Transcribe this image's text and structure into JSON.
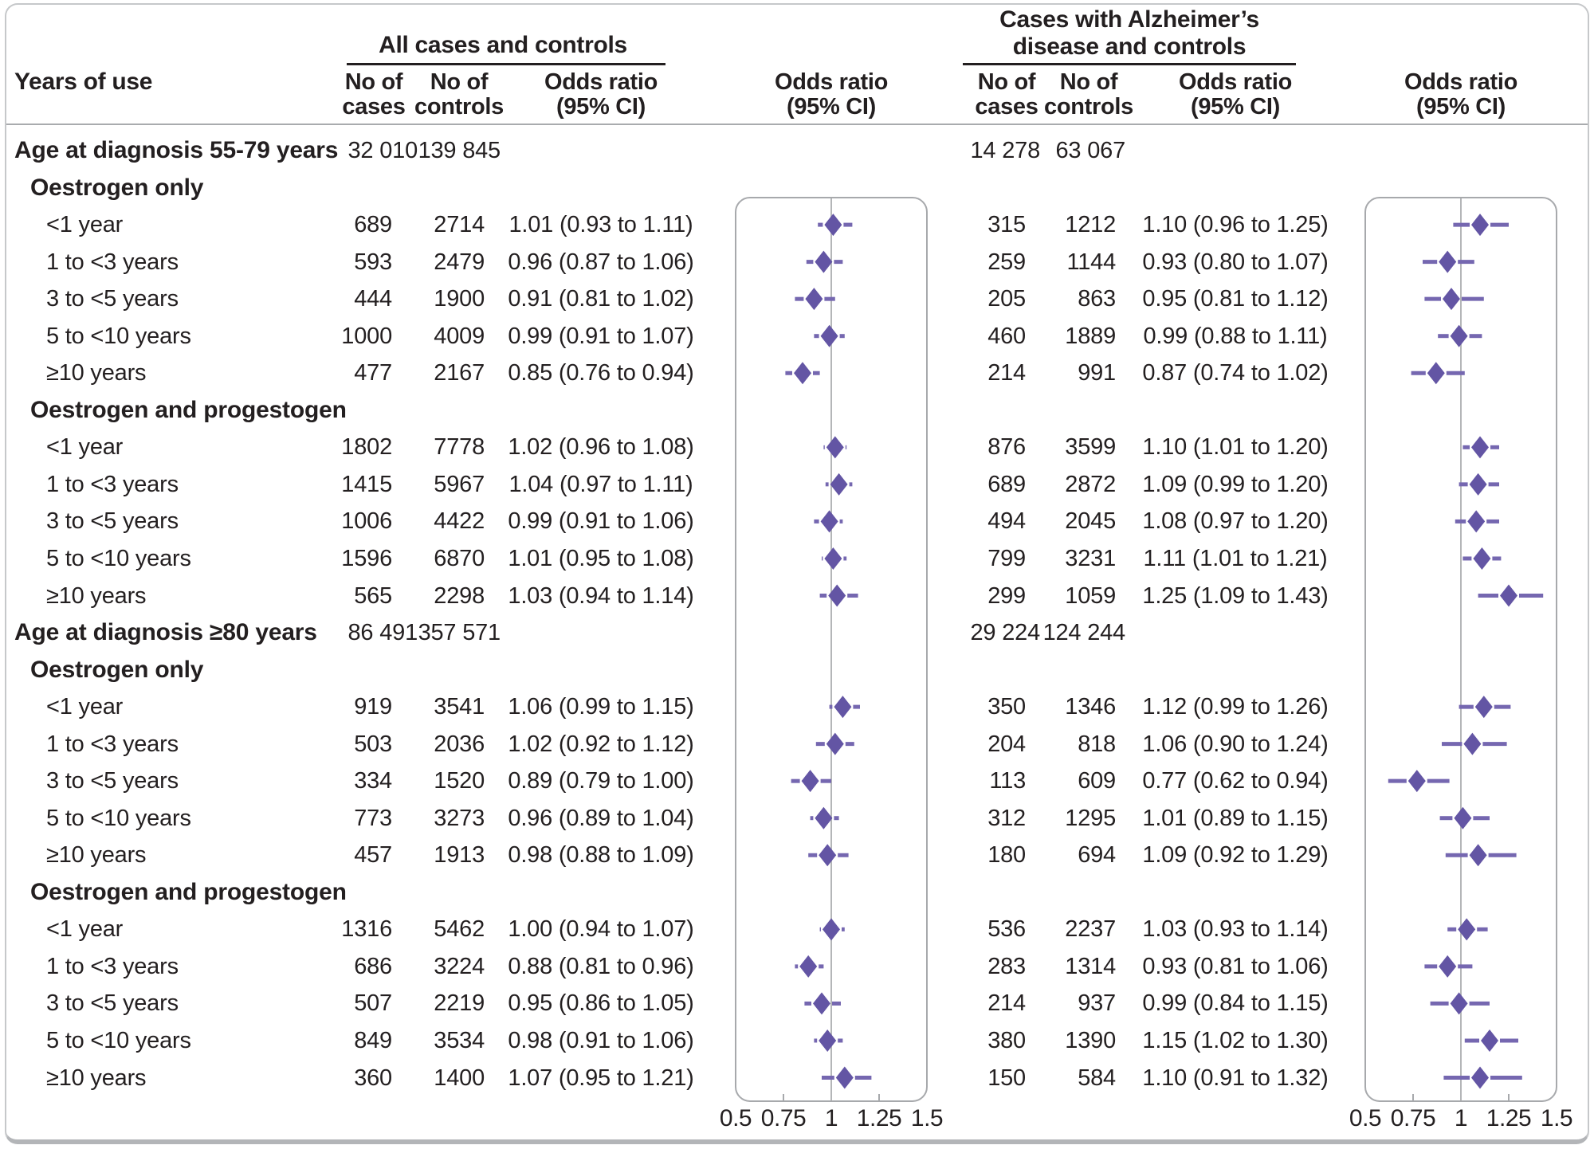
{
  "header": {
    "years_of_use": "Years of use",
    "all_panel_title": "All cases and controls",
    "alz_panel_title_line1": "Cases with Alzheimer’s",
    "alz_panel_title_line2": "disease and controls",
    "no_of": "No of",
    "cases": "cases",
    "controls": "controls",
    "odds_ratio_line1": "Odds ratio",
    "odds_ratio_line2": "(95% CI)"
  },
  "colors": {
    "diamond": "#6355a4",
    "ci_line": "#7567b0",
    "frame": "#a7a9ac",
    "reference_line": "#b4b6b8",
    "text": "#231f20",
    "divider": "#a9abae"
  },
  "chart_data": {
    "type": "forest_plot",
    "panels": [
      "All cases and controls",
      "Cases with Alzheimer’s disease and controls"
    ],
    "axis": {
      "min": 0.5,
      "max": 1.5,
      "reference": 1,
      "ticks": [
        "0.5",
        "0.75",
        "1",
        "1.25",
        "1.5"
      ],
      "tick_values": [
        0.5,
        0.75,
        1,
        1.25,
        1.5
      ]
    },
    "rows": [
      {
        "type": "group",
        "label": "Age at diagnosis 55-79 years",
        "all": {
          "cases": "32 010",
          "controls": "139 845"
        },
        "alz": {
          "cases": "14 278",
          "controls": "63 067"
        }
      },
      {
        "type": "subgroup",
        "label": "Oestrogen only"
      },
      {
        "type": "item",
        "label": "<1 year",
        "all": {
          "cases": "689",
          "controls": "2714",
          "or": 1.01,
          "lo": 0.93,
          "hi": 1.11,
          "text": "1.01 (0.93 to 1.11)"
        },
        "alz": {
          "cases": "315",
          "controls": "1212",
          "or": 1.1,
          "lo": 0.96,
          "hi": 1.25,
          "text": "1.10 (0.96 to 1.25)"
        }
      },
      {
        "type": "item",
        "label": "1 to <3 years",
        "all": {
          "cases": "593",
          "controls": "2479",
          "or": 0.96,
          "lo": 0.87,
          "hi": 1.06,
          "text": "0.96 (0.87 to 1.06)"
        },
        "alz": {
          "cases": "259",
          "controls": "1144",
          "or": 0.93,
          "lo": 0.8,
          "hi": 1.07,
          "text": "0.93 (0.80 to 1.07)"
        }
      },
      {
        "type": "item",
        "label": "3 to <5 years",
        "all": {
          "cases": "444",
          "controls": "1900",
          "or": 0.91,
          "lo": 0.81,
          "hi": 1.02,
          "text": "0.91 (0.81 to 1.02)"
        },
        "alz": {
          "cases": "205",
          "controls": "863",
          "or": 0.95,
          "lo": 0.81,
          "hi": 1.12,
          "text": "0.95 (0.81 to 1.12)"
        }
      },
      {
        "type": "item",
        "label": "5 to <10 years",
        "all": {
          "cases": "1000",
          "controls": "4009",
          "or": 0.99,
          "lo": 0.91,
          "hi": 1.07,
          "text": "0.99 (0.91 to 1.07)"
        },
        "alz": {
          "cases": "460",
          "controls": "1889",
          "or": 0.99,
          "lo": 0.88,
          "hi": 1.11,
          "text": "0.99 (0.88 to 1.11)"
        }
      },
      {
        "type": "item",
        "label": "≥10 years",
        "all": {
          "cases": "477",
          "controls": "2167",
          "or": 0.85,
          "lo": 0.76,
          "hi": 0.94,
          "text": "0.85 (0.76 to 0.94)"
        },
        "alz": {
          "cases": "214",
          "controls": "991",
          "or": 0.87,
          "lo": 0.74,
          "hi": 1.02,
          "text": "0.87 (0.74 to 1.02)"
        }
      },
      {
        "type": "subgroup",
        "label": "Oestrogen and progestogen"
      },
      {
        "type": "item",
        "label": "<1 year",
        "all": {
          "cases": "1802",
          "controls": "7778",
          "or": 1.02,
          "lo": 0.96,
          "hi": 1.08,
          "text": "1.02 (0.96 to 1.08)"
        },
        "alz": {
          "cases": "876",
          "controls": "3599",
          "or": 1.1,
          "lo": 1.01,
          "hi": 1.2,
          "text": "1.10 (1.01 to 1.20)"
        }
      },
      {
        "type": "item",
        "label": "1 to <3 years",
        "all": {
          "cases": "1415",
          "controls": "5967",
          "or": 1.04,
          "lo": 0.97,
          "hi": 1.11,
          "text": "1.04 (0.97 to 1.11)"
        },
        "alz": {
          "cases": "689",
          "controls": "2872",
          "or": 1.09,
          "lo": 0.99,
          "hi": 1.2,
          "text": "1.09 (0.99 to 1.20)"
        }
      },
      {
        "type": "item",
        "label": "3 to <5 years",
        "all": {
          "cases": "1006",
          "controls": "4422",
          "or": 0.99,
          "lo": 0.91,
          "hi": 1.06,
          "text": "0.99 (0.91 to 1.06)"
        },
        "alz": {
          "cases": "494",
          "controls": "2045",
          "or": 1.08,
          "lo": 0.97,
          "hi": 1.2,
          "text": "1.08 (0.97 to 1.20)"
        }
      },
      {
        "type": "item",
        "label": "5 to <10 years",
        "all": {
          "cases": "1596",
          "controls": "6870",
          "or": 1.01,
          "lo": 0.95,
          "hi": 1.08,
          "text": "1.01 (0.95 to 1.08)"
        },
        "alz": {
          "cases": "799",
          "controls": "3231",
          "or": 1.11,
          "lo": 1.01,
          "hi": 1.21,
          "text": "1.11 (1.01 to 1.21)"
        }
      },
      {
        "type": "item",
        "label": "≥10 years",
        "all": {
          "cases": "565",
          "controls": "2298",
          "or": 1.03,
          "lo": 0.94,
          "hi": 1.14,
          "text": "1.03 (0.94 to 1.14)"
        },
        "alz": {
          "cases": "299",
          "controls": "1059",
          "or": 1.25,
          "lo": 1.09,
          "hi": 1.43,
          "text": "1.25 (1.09 to 1.43)"
        }
      },
      {
        "type": "group",
        "label": "Age at diagnosis ≥80 years",
        "all": {
          "cases": "86 491",
          "controls": "357 571"
        },
        "alz": {
          "cases": "29 224",
          "controls": "124 244"
        }
      },
      {
        "type": "subgroup",
        "label": "Oestrogen only"
      },
      {
        "type": "item",
        "label": "<1 year",
        "all": {
          "cases": "919",
          "controls": "3541",
          "or": 1.06,
          "lo": 0.99,
          "hi": 1.15,
          "text": "1.06 (0.99 to 1.15)"
        },
        "alz": {
          "cases": "350",
          "controls": "1346",
          "or": 1.12,
          "lo": 0.99,
          "hi": 1.26,
          "text": "1.12 (0.99 to 1.26)"
        }
      },
      {
        "type": "item",
        "label": "1 to <3 years",
        "all": {
          "cases": "503",
          "controls": "2036",
          "or": 1.02,
          "lo": 0.92,
          "hi": 1.12,
          "text": "1.02 (0.92 to 1.12)"
        },
        "alz": {
          "cases": "204",
          "controls": "818",
          "or": 1.06,
          "lo": 0.9,
          "hi": 1.24,
          "text": "1.06 (0.90 to 1.24)"
        }
      },
      {
        "type": "item",
        "label": "3 to <5 years",
        "all": {
          "cases": "334",
          "controls": "1520",
          "or": 0.89,
          "lo": 0.79,
          "hi": 1.0,
          "text": "0.89 (0.79 to 1.00)"
        },
        "alz": {
          "cases": "113",
          "controls": "609",
          "or": 0.77,
          "lo": 0.62,
          "hi": 0.94,
          "text": "0.77 (0.62 to 0.94)"
        }
      },
      {
        "type": "item",
        "label": "5 to <10 years",
        "all": {
          "cases": "773",
          "controls": "3273",
          "or": 0.96,
          "lo": 0.89,
          "hi": 1.04,
          "text": "0.96 (0.89 to 1.04)"
        },
        "alz": {
          "cases": "312",
          "controls": "1295",
          "or": 1.01,
          "lo": 0.89,
          "hi": 1.15,
          "text": "1.01 (0.89 to 1.15)"
        }
      },
      {
        "type": "item",
        "label": "≥10 years",
        "all": {
          "cases": "457",
          "controls": "1913",
          "or": 0.98,
          "lo": 0.88,
          "hi": 1.09,
          "text": "0.98 (0.88 to 1.09)"
        },
        "alz": {
          "cases": "180",
          "controls": "694",
          "or": 1.09,
          "lo": 0.92,
          "hi": 1.29,
          "text": "1.09 (0.92 to 1.29)"
        }
      },
      {
        "type": "subgroup",
        "label": "Oestrogen and progestogen"
      },
      {
        "type": "item",
        "label": "<1 year",
        "all": {
          "cases": "1316",
          "controls": "5462",
          "or": 1.0,
          "lo": 0.94,
          "hi": 1.07,
          "text": "1.00 (0.94 to 1.07)"
        },
        "alz": {
          "cases": "536",
          "controls": "2237",
          "or": 1.03,
          "lo": 0.93,
          "hi": 1.14,
          "text": "1.03 (0.93 to 1.14)"
        }
      },
      {
        "type": "item",
        "label": "1 to <3 years",
        "all": {
          "cases": "686",
          "controls": "3224",
          "or": 0.88,
          "lo": 0.81,
          "hi": 0.96,
          "text": "0.88 (0.81 to 0.96)"
        },
        "alz": {
          "cases": "283",
          "controls": "1314",
          "or": 0.93,
          "lo": 0.81,
          "hi": 1.06,
          "text": "0.93 (0.81 to 1.06)"
        }
      },
      {
        "type": "item",
        "label": "3 to <5 years",
        "all": {
          "cases": "507",
          "controls": "2219",
          "or": 0.95,
          "lo": 0.86,
          "hi": 1.05,
          "text": "0.95 (0.86 to 1.05)"
        },
        "alz": {
          "cases": "214",
          "controls": "937",
          "or": 0.99,
          "lo": 0.84,
          "hi": 1.15,
          "text": "0.99 (0.84 to 1.15)"
        }
      },
      {
        "type": "item",
        "label": "5 to <10 years",
        "all": {
          "cases": "849",
          "controls": "3534",
          "or": 0.98,
          "lo": 0.91,
          "hi": 1.06,
          "text": "0.98 (0.91 to 1.06)"
        },
        "alz": {
          "cases": "380",
          "controls": "1390",
          "or": 1.15,
          "lo": 1.02,
          "hi": 1.3,
          "text": "1.15 (1.02 to 1.30)"
        }
      },
      {
        "type": "item",
        "label": "≥10 years",
        "all": {
          "cases": "360",
          "controls": "1400",
          "or": 1.07,
          "lo": 0.95,
          "hi": 1.21,
          "text": "1.07 (0.95 to 1.21)"
        },
        "alz": {
          "cases": "150",
          "controls": "584",
          "or": 1.1,
          "lo": 0.91,
          "hi": 1.32,
          "text": "1.10 (0.91 to 1.32)"
        }
      }
    ]
  }
}
